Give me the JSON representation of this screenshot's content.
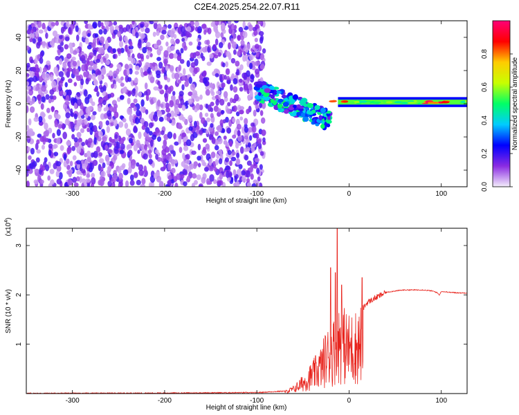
{
  "title": "C2E4.2025.254.22.07.R11",
  "chart_data": [
    {
      "type": "heatmap",
      "xlabel": "Height of straight line (km)",
      "ylabel": "Frequency (Hz)",
      "xlim": [
        -350,
        128
      ],
      "ylim": [
        -50,
        50
      ],
      "x_ticks": [
        -300,
        -200,
        -100,
        0,
        100
      ],
      "y_ticks": [
        -40,
        -20,
        0,
        20,
        40
      ],
      "colorbar": {
        "label": "Normalized spectral amplitude",
        "range": [
          0,
          1
        ],
        "ticks": [
          "0.0",
          "0.2",
          "0.4",
          "0.6",
          "0.8"
        ],
        "colors": [
          "#f4eefb",
          "#8a2be2",
          "#0000ff",
          "#00ccff",
          "#00ff66",
          "#c8ff00",
          "#ffcc00",
          "#ff0000",
          "#ff0077"
        ]
      },
      "regions": [
        {
          "name": "noise",
          "x": [
            -350,
            -100
          ],
          "freq": [
            -50,
            50
          ],
          "amplitude": 0.15
        },
        {
          "name": "transition",
          "x": [
            -100,
            -20
          ],
          "freq": [
            -25,
            20
          ],
          "amplitude": 0.4
        },
        {
          "name": "carrier",
          "x": [
            -20,
            128
          ],
          "freq": [
            0,
            2
          ],
          "amplitude": 0.6
        }
      ]
    },
    {
      "type": "line",
      "xlabel": "Height of straight line (km)",
      "ylabel": "SNR (10 * v/v)",
      "y_scale_label": "(x10",
      "y_scale_exp": "4",
      "xlim": [
        -350,
        128
      ],
      "ylim": [
        0,
        3.35
      ],
      "x_ticks": [
        -300,
        -200,
        -100,
        0,
        100
      ],
      "y_ticks": [
        1,
        2,
        3
      ],
      "color": "#e8231c",
      "series": [
        {
          "x": [
            -350,
            -200,
            -100,
            -70,
            -60,
            -50,
            -40,
            -30,
            -25,
            -20,
            -15,
            -10,
            -5,
            0,
            10,
            20,
            30,
            40,
            50,
            60,
            80,
            90,
            95,
            98,
            100,
            110,
            120,
            128
          ],
          "y": [
            0.005,
            0.01,
            0.02,
            0.05,
            0.15,
            0.35,
            0.6,
            0.9,
            1.2,
            1.3,
            1.5,
            1.8,
            1.6,
            1.5,
            1.6,
            1.85,
            1.95,
            2.05,
            2.08,
            2.1,
            2.1,
            2.08,
            2.05,
            2.0,
            2.07,
            2.05,
            2.04,
            2.04
          ],
          "spikes": [
            [
              -13,
              3.35
            ],
            [
              -20,
              2.55
            ],
            [
              -15,
              2.45
            ],
            [
              -8,
              2.2
            ],
            [
              14,
              2.35
            ]
          ]
        }
      ]
    }
  ]
}
